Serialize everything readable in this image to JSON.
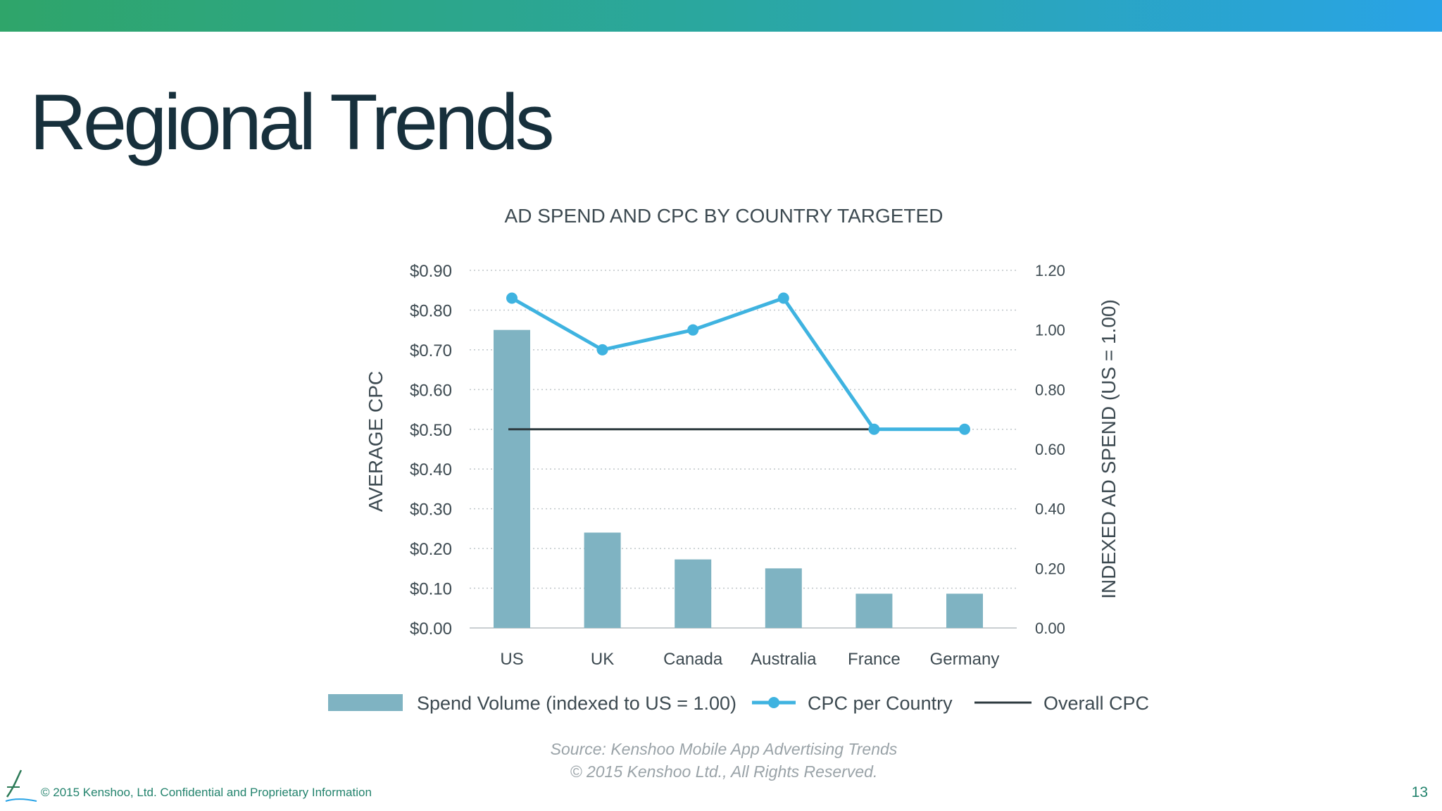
{
  "slide": {
    "title": "Regional Trends",
    "footer": "©  2015 Kenshoo, Ltd. Confidential and Proprietary Information",
    "page_number": "13",
    "accent_colors": [
      "#2fa56a",
      "#29a3e6"
    ]
  },
  "chart_data": {
    "type": "bar",
    "title": "AD SPEND AND CPC BY COUNTRY TARGETED",
    "categories": [
      "US",
      "UK",
      "Canada",
      "Australia",
      "France",
      "Germany"
    ],
    "ylabel": "AVERAGE CPC",
    "y2label": "INDEXED AD SPEND (US = 1.00)",
    "ylim": [
      0,
      0.9
    ],
    "y2lim": [
      0,
      1.2
    ],
    "y_ticks": [
      "$0.00",
      "$0.10",
      "$0.20",
      "$0.30",
      "$0.40",
      "$0.50",
      "$0.60",
      "$0.70",
      "$0.80",
      "$0.90"
    ],
    "y2_ticks": [
      "0.00",
      "0.20",
      "0.40",
      "0.60",
      "0.80",
      "1.00",
      "1.20"
    ],
    "grid": true,
    "legend_position": "bottom",
    "series": [
      {
        "name": "Spend Volume (indexed to US = 1.00)",
        "type": "bar",
        "axis": "right",
        "color": "#7fb3c2",
        "values": [
          1.0,
          0.32,
          0.23,
          0.2,
          0.115,
          0.115
        ]
      },
      {
        "name": "CPC per Country",
        "type": "line",
        "axis": "left",
        "color": "#3fb3e0",
        "values": [
          0.83,
          0.7,
          0.75,
          0.83,
          0.5,
          0.5
        ]
      },
      {
        "name": "Overall CPC",
        "type": "line",
        "axis": "left",
        "color": "#2d3a3f",
        "values": [
          0.5,
          0.5,
          0.5,
          0.5,
          0.5,
          0.5
        ]
      }
    ],
    "source": "Source: Kenshoo Mobile App Advertising Trends",
    "copyright": "© 2015 Kenshoo Ltd., All Rights Reserved."
  }
}
